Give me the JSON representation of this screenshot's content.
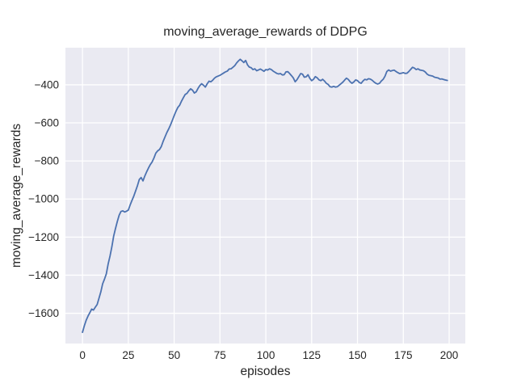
{
  "chart_data": {
    "type": "line",
    "title": "moving_average_rewards of DDPG",
    "xlabel": "episodes",
    "ylabel": "moving_average_rewards",
    "style": "seaborn-darkgrid",
    "grid": true,
    "legend": "none",
    "xlim": [
      -9.3,
      208.8
    ],
    "ylim": [
      -1759,
      -205
    ],
    "x_ticks": [
      0,
      25,
      50,
      75,
      100,
      125,
      150,
      175,
      200
    ],
    "x_tick_labels": [
      "0",
      "25",
      "50",
      "75",
      "100",
      "125",
      "150",
      "175",
      "200"
    ],
    "y_ticks": [
      -400,
      -600,
      -800,
      -1000,
      -1200,
      -1400,
      -1600
    ],
    "y_tick_labels": [
      "−400",
      "−600",
      "−800",
      "−1000",
      "−1200",
      "−1400",
      "−1600"
    ],
    "colors": {
      "figure_background": "#ffffff",
      "axes_background": "#eaeaf2",
      "gridline": "#ffffff",
      "line": "#4c72b0",
      "text": "#262626"
    },
    "series": [
      {
        "name": "moving_average_rewards",
        "color": "#4c72b0",
        "x_note": "x value = episode index, 0 through 199",
        "values": [
          -1700,
          -1666,
          -1637,
          -1615,
          -1597,
          -1578,
          -1583,
          -1568,
          -1554,
          -1521,
          -1488,
          -1445,
          -1421,
          -1393,
          -1341,
          -1300,
          -1252,
          -1195,
          -1155,
          -1118,
          -1085,
          -1065,
          -1062,
          -1068,
          -1064,
          -1058,
          -1031,
          -1007,
          -984,
          -957,
          -929,
          -897,
          -887,
          -905,
          -879,
          -857,
          -837,
          -819,
          -805,
          -784,
          -759,
          -747,
          -740,
          -724,
          -697,
          -674,
          -651,
          -632,
          -611,
          -587,
          -562,
          -539,
          -519,
          -507,
          -486,
          -468,
          -451,
          -445,
          -431,
          -421,
          -428,
          -443,
          -437,
          -419,
          -404,
          -394,
          -402,
          -412,
          -395,
          -381,
          -384,
          -376,
          -365,
          -358,
          -354,
          -350,
          -344,
          -338,
          -332,
          -328,
          -317,
          -316,
          -308,
          -300,
          -286,
          -275,
          -266,
          -274,
          -283,
          -272,
          -295,
          -307,
          -310,
          -320,
          -316,
          -326,
          -322,
          -317,
          -323,
          -329,
          -320,
          -322,
          -316,
          -320,
          -328,
          -334,
          -340,
          -343,
          -341,
          -348,
          -347,
          -332,
          -331,
          -341,
          -352,
          -364,
          -384,
          -373,
          -357,
          -341,
          -344,
          -360,
          -358,
          -347,
          -366,
          -378,
          -371,
          -357,
          -363,
          -374,
          -378,
          -371,
          -380,
          -392,
          -398,
          -410,
          -412,
          -408,
          -412,
          -410,
          -402,
          -394,
          -386,
          -375,
          -365,
          -372,
          -384,
          -392,
          -385,
          -374,
          -378,
          -388,
          -392,
          -380,
          -371,
          -374,
          -368,
          -370,
          -376,
          -385,
          -392,
          -396,
          -392,
          -380,
          -371,
          -355,
          -330,
          -322,
          -328,
          -325,
          -323,
          -330,
          -336,
          -341,
          -339,
          -336,
          -340,
          -339,
          -330,
          -319,
          -308,
          -312,
          -320,
          -316,
          -322,
          -324,
          -326,
          -333,
          -344,
          -350,
          -352,
          -354,
          -360,
          -362,
          -364,
          -370,
          -369,
          -372,
          -375,
          -377
        ]
      }
    ]
  }
}
